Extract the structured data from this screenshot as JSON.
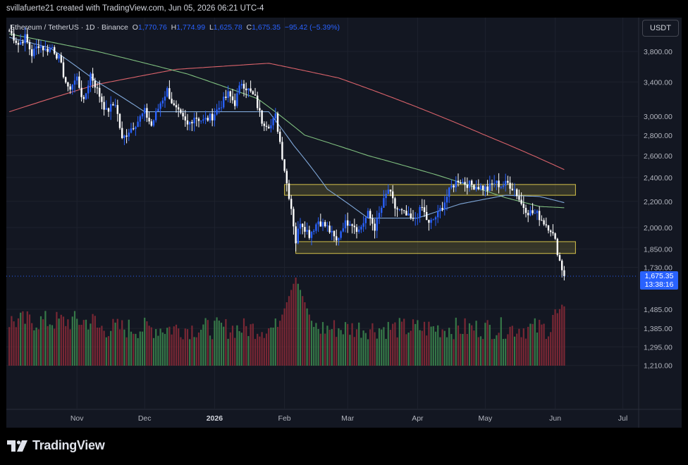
{
  "header": {
    "text": "svillafuerte21 created with TradingView.com, Jun 05, 2026 06:21 UTC-4"
  },
  "symbol": {
    "name": "Ethereum / TetherUS · 1D · Binance",
    "o_label": "O",
    "o_value": "1,770.76",
    "h_label": "H",
    "h_value": "1,774.99",
    "l_label": "L",
    "l_value": "1,625.78",
    "c_label": "C",
    "c_value": "1,675.35",
    "change": "−95.42 (−5.39%)"
  },
  "currency_button": "USDT",
  "last_price": {
    "value": "1,675.35",
    "countdown": "13:38:16"
  },
  "branding": {
    "logo": "tradingview-logo-icon",
    "name": "TradingView"
  },
  "colors": {
    "up": "#2962ff",
    "down": "#ffffff",
    "vol_up": "#3d8a4f",
    "vol_down": "#8c2a37",
    "ma_short": "#7fa7d8",
    "ma_mid": "#7fbf7f",
    "ma_long": "#d9626a",
    "zone": "#d4c24a",
    "background": "#131722"
  },
  "chart_data": {
    "type": "candlestick",
    "scale": "log",
    "ylim": [
      1210,
      4200
    ],
    "y_ticks": [
      "3,800.00",
      "3,400.00",
      "3,000.00",
      "2,800.00",
      "2,600.00",
      "2,400.00",
      "2,200.00",
      "2,000.00",
      "1,850.00",
      "1,730.00",
      "1,485.00",
      "1,385.00",
      "1,295.00",
      "1,210.00"
    ],
    "x_ticks": [
      {
        "label": "Nov",
        "date": "2025-11-01"
      },
      {
        "label": "Dec",
        "date": "2025-12-01"
      },
      {
        "label": "2026",
        "date": "2026-01-01",
        "bold": true
      },
      {
        "label": "Feb",
        "date": "2026-02-01"
      },
      {
        "label": "Mar",
        "date": "2026-03-01"
      },
      {
        "label": "Apr",
        "date": "2026-04-01"
      },
      {
        "label": "May",
        "date": "2026-05-01"
      },
      {
        "label": "Jun",
        "date": "2026-06-01"
      },
      {
        "label": "Jul",
        "date": "2026-07-01"
      }
    ],
    "close_anchors": [
      [
        "2025-10-02",
        4100
      ],
      [
        "2025-10-06",
        3900
      ],
      [
        "2025-10-09",
        4000
      ],
      [
        "2025-10-12",
        3760
      ],
      [
        "2025-10-15",
        3900
      ],
      [
        "2025-10-18",
        3820
      ],
      [
        "2025-10-21",
        3860
      ],
      [
        "2025-10-24",
        3700
      ],
      [
        "2025-10-28",
        3300
      ],
      [
        "2025-11-01",
        3450
      ],
      [
        "2025-11-04",
        3150
      ],
      [
        "2025-11-07",
        3500
      ],
      [
        "2025-11-10",
        3300
      ],
      [
        "2025-11-14",
        3050
      ],
      [
        "2025-11-18",
        3150
      ],
      [
        "2025-11-21",
        2750
      ],
      [
        "2025-11-24",
        2850
      ],
      [
        "2025-11-28",
        2950
      ],
      [
        "2025-12-01",
        3050
      ],
      [
        "2025-12-04",
        2900
      ],
      [
        "2025-12-08",
        3150
      ],
      [
        "2025-12-11",
        3300
      ],
      [
        "2025-12-14",
        3100
      ],
      [
        "2025-12-17",
        3000
      ],
      [
        "2025-12-20",
        2900
      ],
      [
        "2025-12-23",
        3000
      ],
      [
        "2025-12-27",
        2950
      ],
      [
        "2025-12-31",
        3000
      ],
      [
        "2026-01-03",
        3100
      ],
      [
        "2026-01-07",
        3250
      ],
      [
        "2026-01-10",
        3150
      ],
      [
        "2026-01-13",
        3400
      ],
      [
        "2026-01-16",
        3300
      ],
      [
        "2026-01-19",
        3200
      ],
      [
        "2026-01-22",
        2950
      ],
      [
        "2026-01-26",
        2900
      ],
      [
        "2026-01-28",
        3000
      ],
      [
        "2026-01-31",
        2600
      ],
      [
        "2026-02-02",
        2350
      ],
      [
        "2026-02-04",
        2150
      ],
      [
        "2026-02-06",
        1900
      ],
      [
        "2026-02-08",
        2050
      ],
      [
        "2026-02-12",
        1950
      ],
      [
        "2026-02-16",
        2050
      ],
      [
        "2026-02-20",
        2000
      ],
      [
        "2026-02-24",
        1900
      ],
      [
        "2026-02-27",
        2020
      ],
      [
        "2026-03-02",
        2050
      ],
      [
        "2026-03-06",
        1980
      ],
      [
        "2026-03-10",
        2100
      ],
      [
        "2026-03-13",
        2000
      ],
      [
        "2026-03-16",
        2150
      ],
      [
        "2026-03-19",
        2300
      ],
      [
        "2026-03-22",
        2150
      ],
      [
        "2026-03-26",
        2100
      ],
      [
        "2026-03-30",
        2050
      ],
      [
        "2026-04-03",
        2150
      ],
      [
        "2026-04-06",
        2020
      ],
      [
        "2026-04-10",
        2100
      ],
      [
        "2026-04-13",
        2200
      ],
      [
        "2026-04-16",
        2320
      ],
      [
        "2026-04-19",
        2380
      ],
      [
        "2026-04-22",
        2350
      ],
      [
        "2026-04-26",
        2330
      ],
      [
        "2026-04-29",
        2320
      ],
      [
        "2026-05-02",
        2300
      ],
      [
        "2026-05-05",
        2360
      ],
      [
        "2026-05-08",
        2330
      ],
      [
        "2026-05-11",
        2350
      ],
      [
        "2026-05-14",
        2300
      ],
      [
        "2026-05-17",
        2180
      ],
      [
        "2026-05-20",
        2120
      ],
      [
        "2026-05-24",
        2100
      ],
      [
        "2026-05-27",
        2040
      ],
      [
        "2026-05-30",
        1990
      ],
      [
        "2026-06-01",
        1900
      ],
      [
        "2026-06-03",
        1771
      ],
      [
        "2026-06-05",
        1675.35
      ]
    ],
    "ma_short": [
      [
        "2025-10-02",
        4000
      ],
      [
        "2025-10-20",
        3850
      ],
      [
        "2025-11-10",
        3400
      ],
      [
        "2025-12-01",
        3050
      ],
      [
        "2026-01-01",
        3050
      ],
      [
        "2026-01-25",
        3050
      ],
      [
        "2026-02-05",
        2700
      ],
      [
        "2026-02-20",
        2300
      ],
      [
        "2026-03-10",
        2070
      ],
      [
        "2026-04-01",
        2070
      ],
      [
        "2026-04-20",
        2180
      ],
      [
        "2026-05-10",
        2250
      ],
      [
        "2026-05-25",
        2240
      ],
      [
        "2026-06-05",
        2190
      ]
    ],
    "ma_mid": [
      [
        "2025-10-02",
        4050
      ],
      [
        "2025-11-10",
        3800
      ],
      [
        "2025-12-20",
        3500
      ],
      [
        "2026-01-20",
        3200
      ],
      [
        "2026-02-10",
        2800
      ],
      [
        "2026-03-10",
        2600
      ],
      [
        "2026-04-10",
        2420
      ],
      [
        "2026-05-10",
        2230
      ],
      [
        "2026-05-25",
        2160
      ],
      [
        "2026-06-05",
        2150
      ]
    ],
    "ma_long": [
      [
        "2025-10-02",
        3050
      ],
      [
        "2025-11-10",
        3370
      ],
      [
        "2025-12-15",
        3560
      ],
      [
        "2026-01-25",
        3640
      ],
      [
        "2026-02-25",
        3450
      ],
      [
        "2026-04-01",
        3100
      ],
      [
        "2026-05-01",
        2800
      ],
      [
        "2026-06-05",
        2470
      ]
    ],
    "zones": [
      {
        "x0": "2026-02-01",
        "x1": "2026-06-10",
        "y0": 2250,
        "y1": 2340
      },
      {
        "x0": "2026-02-06",
        "x1": "2026-06-10",
        "y0": 1820,
        "y1": 1900
      }
    ],
    "volume_spike": {
      "date": "2026-02-06",
      "peak": "max"
    }
  }
}
